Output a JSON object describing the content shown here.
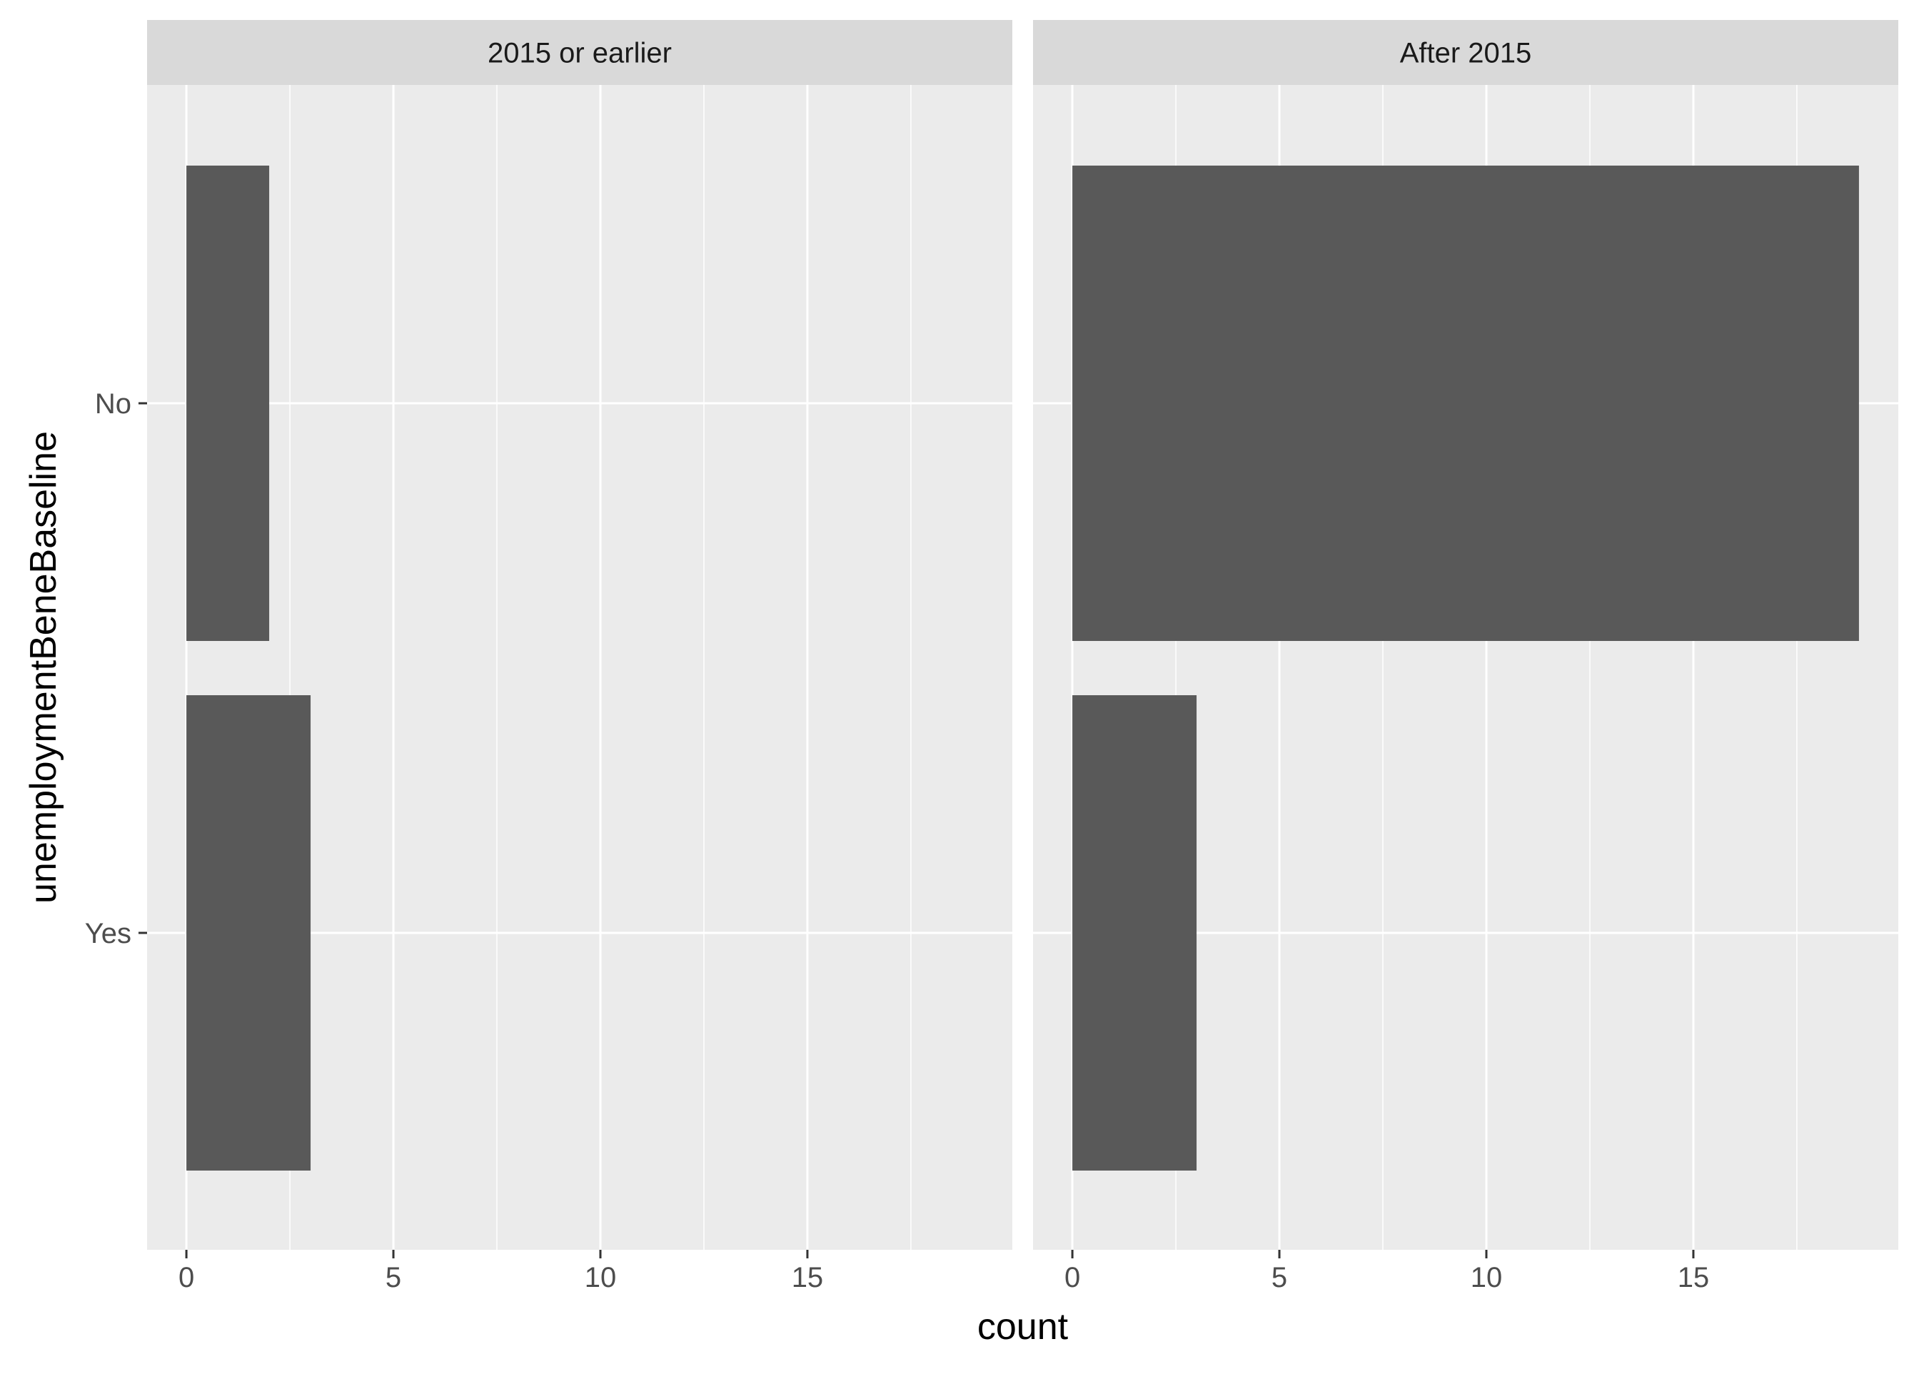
{
  "chart_data": {
    "type": "bar",
    "orientation": "horizontal",
    "facet": true,
    "xlabel": "count",
    "ylabel": "unemploymentBeneBaseline",
    "categories": [
      "No",
      "Yes"
    ],
    "x_ticks": [
      0,
      5,
      10,
      15
    ],
    "xlim": [
      -0.95,
      19.95
    ],
    "panels": [
      {
        "title": "2015 or earlier",
        "values": [
          2,
          3
        ]
      },
      {
        "title": "After 2015",
        "values": [
          19,
          3
        ]
      }
    ],
    "grid": true,
    "legend": "none",
    "colors": {
      "bar": "#595959",
      "panel_background": "#ebebeb",
      "strip_background": "#d9d9d9",
      "grid": "#ffffff",
      "text": "#1a1a1a",
      "tick_label": "#4d4d4d"
    }
  }
}
